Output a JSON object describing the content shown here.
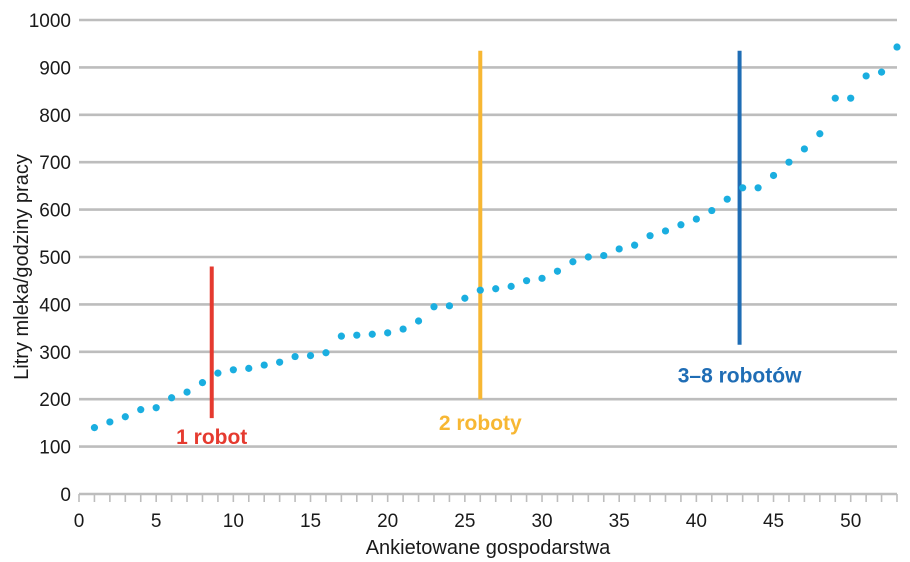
{
  "chart_data": {
    "type": "scatter",
    "title": "",
    "xlabel": "Ankietowane gospodarstwa",
    "ylabel": "Litry mleka/godziny pracy",
    "xlim": [
      0,
      53
    ],
    "ylim": [
      0,
      1000
    ],
    "grid": true,
    "x_ticks": [
      0,
      5,
      10,
      15,
      20,
      25,
      30,
      35,
      40,
      45,
      50
    ],
    "y_ticks": [
      0,
      100,
      200,
      300,
      400,
      500,
      600,
      700,
      800,
      900,
      1000
    ],
    "point_color": "#1aaee0",
    "series": [
      {
        "x": [
          1,
          2,
          3,
          4,
          5,
          6,
          7,
          8,
          9,
          10,
          11,
          12,
          13,
          14,
          15,
          16,
          17,
          18,
          19,
          20,
          21,
          22,
          23,
          24,
          25,
          26,
          27,
          28,
          29,
          30,
          31,
          32,
          33,
          34,
          35,
          36,
          37,
          38,
          39,
          40,
          41,
          42,
          43,
          44,
          45,
          46,
          47,
          48,
          49,
          50,
          51,
          52,
          53
        ],
        "values": [
          140,
          152,
          163,
          178,
          182,
          203,
          215,
          235,
          255,
          262,
          265,
          272,
          278,
          290,
          292,
          298,
          333,
          335,
          337,
          340,
          348,
          365,
          395,
          397,
          413,
          430,
          433,
          438,
          450,
          455,
          470,
          490,
          500,
          503,
          517,
          525,
          545,
          555,
          568,
          580,
          598,
          622,
          646,
          646,
          672,
          700,
          728,
          760,
          835,
          835,
          882,
          890,
          943
        ]
      }
    ],
    "annotations": [
      {
        "label": "1 robot",
        "x": 8.6,
        "y_from": 160,
        "y_to": 480,
        "color": "#e53a2f",
        "label_x": 8.6,
        "label_y": 120
      },
      {
        "label": "2 roboty",
        "x": 26.0,
        "y_from": 200,
        "y_to": 935,
        "color": "#f7b733",
        "label_x": 26.0,
        "label_y": 150
      },
      {
        "label": "3–8 robotów",
        "x": 42.8,
        "y_from": 315,
        "y_to": 935,
        "color": "#1f6db5",
        "label_x": 42.8,
        "label_y": 250
      }
    ]
  }
}
